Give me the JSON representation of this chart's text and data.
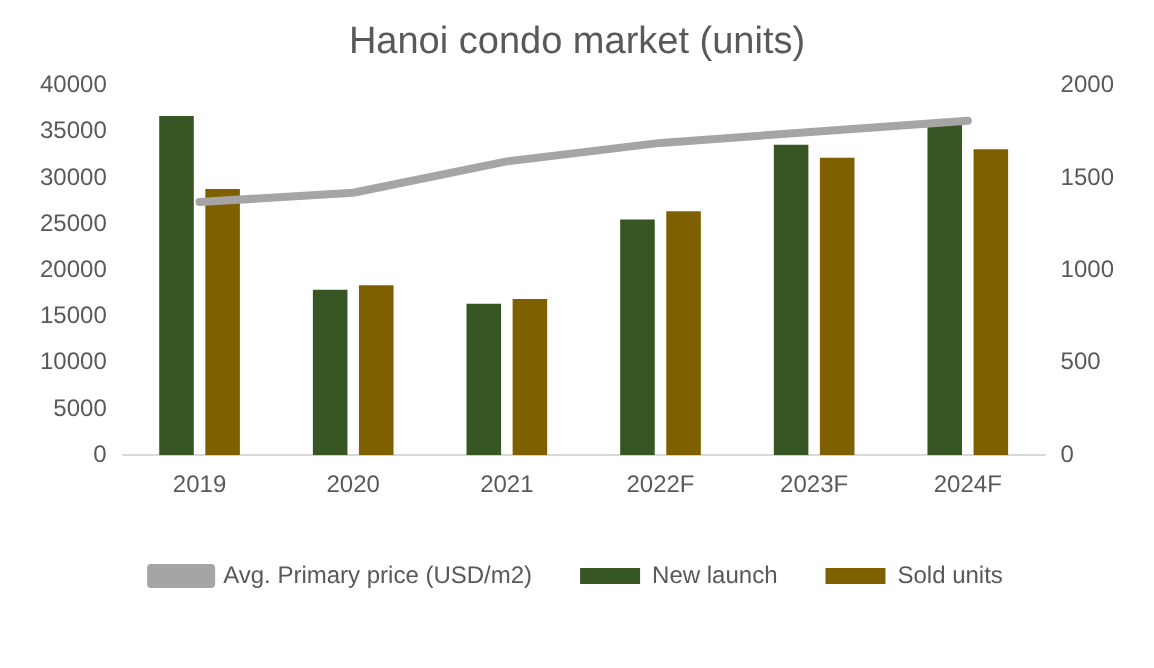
{
  "chart_data": {
    "type": "bar",
    "title": "Hanoi condo market (units)",
    "categories": [
      "2019",
      "2020",
      "2021",
      "2022F",
      "2023F",
      "2024F"
    ],
    "series": [
      {
        "name": "New launch",
        "color": "#375623",
        "values": [
          36700,
          17900,
          16400,
          25500,
          33600,
          35900
        ]
      },
      {
        "name": "Sold units",
        "color": "#7f6000",
        "values": [
          28800,
          18400,
          16900,
          26400,
          32200,
          33100
        ]
      },
      {
        "name": "Avg. Primary price (USD/m2)",
        "type": "line",
        "axis": "y2",
        "color": "#a5a5a5",
        "values": [
          1370,
          1420,
          1590,
          1690,
          1750,
          1810
        ]
      }
    ],
    "ylim": [
      0,
      40000
    ],
    "yticks": [
      0,
      5000,
      10000,
      15000,
      20000,
      25000,
      30000,
      35000,
      40000
    ],
    "y2lim": [
      0,
      2000
    ],
    "y2ticks": [
      0,
      500,
      1000,
      1500,
      2000
    ],
    "grid": false,
    "legend": "bottom",
    "marker": "none"
  }
}
